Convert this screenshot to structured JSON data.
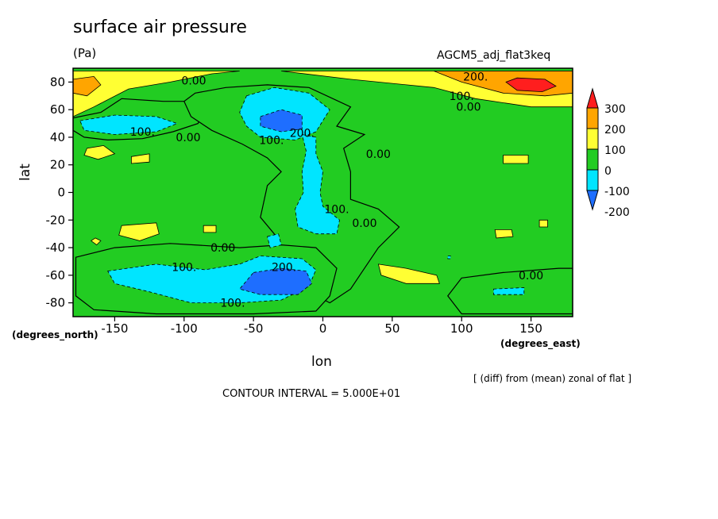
{
  "title": "surface air pressure",
  "units": "(Pa)",
  "run_name": "AGCM5_adj_flat3keq",
  "ylabel": "lat",
  "yunit": "(degrees_north)",
  "xlabel": "lon",
  "xunit": "(degrees_east)",
  "note": "[ (diff) from (mean) zonal of flat ]",
  "contour_interval": "CONTOUR INTERVAL = 5.000E+01",
  "chart_data": {
    "type": "heatmap",
    "title": "surface air pressure",
    "xlabel": "lon",
    "ylabel": "lat",
    "xlim": [
      -180,
      180
    ],
    "ylim": [
      -90,
      90
    ],
    "x_ticks": [
      -150,
      -100,
      -50,
      0,
      50,
      100,
      150
    ],
    "x_tick_labels": [
      "-150",
      "-100",
      "-50",
      "0",
      "50",
      "100",
      "150"
    ],
    "y_ticks": [
      80,
      60,
      40,
      20,
      0,
      -20,
      -40,
      -60,
      -80
    ],
    "y_tick_labels": [
      "80",
      "60",
      "40",
      "20",
      "0",
      "-20",
      "-40",
      "-60",
      "-80"
    ],
    "contour_interval": 50,
    "colorbar": {
      "levels": [
        -200,
        -100,
        0,
        100,
        200,
        300
      ],
      "labels": [
        "300",
        "200",
        "100",
        "0",
        "-100",
        "-200"
      ],
      "colors": [
        "#1E6EFF",
        "#00E5FF",
        "#22CC22",
        "#FFFF33",
        "#FFA500",
        "#FF1E1E"
      ]
    },
    "contour_labels": [
      {
        "text": "0.00",
        "lon": -93,
        "lat": 81
      },
      {
        "text": "200.",
        "lon": 110,
        "lat": 84
      },
      {
        "text": "100.",
        "lon": 100,
        "lat": 70
      },
      {
        "text": "0.00",
        "lon": 105,
        "lat": 62
      },
      {
        "text": "100.",
        "lon": -130,
        "lat": 44
      },
      {
        "text": "0.00",
        "lon": -97,
        "lat": 40
      },
      {
        "text": "100.",
        "lon": -37,
        "lat": 38
      },
      {
        "text": "200.",
        "lon": -15,
        "lat": 43
      },
      {
        "text": "0.00",
        "lon": 40,
        "lat": 28
      },
      {
        "text": "100.",
        "lon": 10,
        "lat": -12
      },
      {
        "text": "0.00",
        "lon": 30,
        "lat": -22
      },
      {
        "text": "0.00",
        "lon": -72,
        "lat": -40
      },
      {
        "text": "100.",
        "lon": -100,
        "lat": -54
      },
      {
        "text": "200.",
        "lon": -28,
        "lat": -54
      },
      {
        "text": "0.00",
        "lon": 150,
        "lat": -60
      },
      {
        "text": "100.",
        "lon": -65,
        "lat": -80
      }
    ],
    "regions": [
      {
        "level": 100,
        "pts": [
          [
            -180,
            88
          ],
          [
            -180,
            55
          ],
          [
            -165,
            62
          ],
          [
            -140,
            75
          ],
          [
            -110,
            80
          ],
          [
            -80,
            86
          ],
          [
            -60,
            88
          ]
        ]
      },
      {
        "level": 200,
        "pts": [
          [
            -180,
            82
          ],
          [
            -180,
            72
          ],
          [
            -170,
            70
          ],
          [
            -160,
            78
          ],
          [
            -165,
            84
          ]
        ]
      },
      {
        "level": 100,
        "pts": [
          [
            -30,
            88
          ],
          [
            20,
            82
          ],
          [
            80,
            76
          ],
          [
            110,
            68
          ],
          [
            150,
            62
          ],
          [
            180,
            62
          ],
          [
            180,
            88
          ]
        ]
      },
      {
        "level": 200,
        "pts": [
          [
            80,
            88
          ],
          [
            100,
            80
          ],
          [
            130,
            72
          ],
          [
            160,
            70
          ],
          [
            180,
            72
          ],
          [
            180,
            88
          ]
        ]
      },
      {
        "level": 300,
        "pts": [
          [
            132,
            80
          ],
          [
            140,
            74
          ],
          [
            158,
            73
          ],
          [
            168,
            77
          ],
          [
            160,
            82
          ],
          [
            140,
            83
          ]
        ]
      },
      {
        "level": 0,
        "pts": [
          [
            -160,
            58
          ],
          [
            -145,
            68
          ],
          [
            -115,
            66
          ],
          [
            -92,
            66
          ],
          [
            -86,
            60
          ],
          [
            -90,
            50
          ],
          [
            -108,
            44
          ],
          [
            -130,
            39
          ],
          [
            -155,
            38
          ],
          [
            -172,
            40
          ],
          [
            -180,
            45
          ],
          [
            -180,
            54
          ]
        ]
      },
      {
        "level": 0,
        "pts": [
          [
            -92,
            72
          ],
          [
            -70,
            76
          ],
          [
            -40,
            78
          ],
          [
            -10,
            76
          ],
          [
            20,
            62
          ],
          [
            10,
            48
          ],
          [
            30,
            42
          ],
          [
            15,
            32
          ],
          [
            20,
            15
          ],
          [
            20,
            -5
          ],
          [
            40,
            -12
          ],
          [
            55,
            -25
          ],
          [
            40,
            -40
          ],
          [
            30,
            -55
          ],
          [
            20,
            -70
          ],
          [
            5,
            -80
          ],
          [
            -10,
            -72
          ],
          [
            -25,
            -50
          ],
          [
            -35,
            -30
          ],
          [
            -45,
            -18
          ],
          [
            -40,
            5
          ],
          [
            -30,
            15
          ],
          [
            -40,
            25
          ],
          [
            -58,
            35
          ],
          [
            -80,
            45
          ],
          [
            -95,
            55
          ],
          [
            -100,
            66
          ]
        ]
      },
      {
        "level": 0,
        "pts": [
          [
            -178,
            -47
          ],
          [
            -150,
            -40
          ],
          [
            -110,
            -37
          ],
          [
            -60,
            -40
          ],
          [
            -30,
            -38
          ],
          [
            -5,
            -40
          ],
          [
            10,
            -55
          ],
          [
            5,
            -75
          ],
          [
            -5,
            -86
          ],
          [
            -50,
            -88
          ],
          [
            -120,
            -88
          ],
          [
            -165,
            -85
          ],
          [
            -178,
            -75
          ]
        ]
      },
      {
        "level": 0,
        "pts": [
          [
            100,
            -62
          ],
          [
            130,
            -58
          ],
          [
            170,
            -55
          ],
          [
            180,
            -55
          ],
          [
            180,
            -88
          ],
          [
            100,
            -88
          ],
          [
            90,
            -75
          ]
        ]
      },
      {
        "level": -100,
        "pts": [
          [
            -175,
            52
          ],
          [
            -150,
            56
          ],
          [
            -120,
            55
          ],
          [
            -105,
            50
          ],
          [
            -120,
            44
          ],
          [
            -150,
            42
          ],
          [
            -172,
            45
          ]
        ]
      },
      {
        "level": -100,
        "pts": [
          [
            -55,
            70
          ],
          [
            -35,
            76
          ],
          [
            -10,
            72
          ],
          [
            5,
            60
          ],
          [
            -5,
            44
          ],
          [
            -20,
            38
          ],
          [
            -45,
            40
          ],
          [
            -55,
            48
          ],
          [
            -60,
            58
          ]
        ]
      },
      {
        "level": -100,
        "pts": [
          [
            -15,
            42
          ],
          [
            -5,
            40
          ],
          [
            -5,
            28
          ],
          [
            0,
            15
          ],
          [
            -2,
            0
          ],
          [
            0,
            -10
          ],
          [
            12,
            -20
          ],
          [
            10,
            -30
          ],
          [
            -5,
            -30
          ],
          [
            -18,
            -25
          ],
          [
            -20,
            -12
          ],
          [
            -14,
            0
          ],
          [
            -15,
            15
          ],
          [
            -12,
            30
          ]
        ]
      },
      {
        "level": -100,
        "pts": [
          [
            -155,
            -57
          ],
          [
            -120,
            -52
          ],
          [
            -85,
            -56
          ],
          [
            -60,
            -52
          ],
          [
            -45,
            -46
          ],
          [
            -15,
            -48
          ],
          [
            -5,
            -56
          ],
          [
            -10,
            -68
          ],
          [
            -30,
            -78
          ],
          [
            -60,
            -80
          ],
          [
            -95,
            -80
          ],
          [
            -125,
            -72
          ],
          [
            -150,
            -66
          ]
        ]
      },
      {
        "level": -200,
        "pts": [
          [
            -50,
            -58
          ],
          [
            -30,
            -55
          ],
          [
            -12,
            -57
          ],
          [
            -8,
            -66
          ],
          [
            -18,
            -74
          ],
          [
            -45,
            -74
          ],
          [
            -60,
            -70
          ]
        ]
      },
      {
        "level": -200,
        "pts": [
          [
            -45,
            55
          ],
          [
            -30,
            60
          ],
          [
            -15,
            56
          ],
          [
            -15,
            46
          ],
          [
            -30,
            44
          ],
          [
            -45,
            48
          ]
        ]
      },
      {
        "level": 100,
        "pts": [
          [
            -170,
            32
          ],
          [
            -158,
            34
          ],
          [
            -150,
            28
          ],
          [
            -162,
            24
          ],
          [
            -172,
            27
          ]
        ]
      },
      {
        "level": 100,
        "pts": [
          [
            -138,
            26
          ],
          [
            -125,
            28
          ],
          [
            -125,
            22
          ],
          [
            -138,
            21
          ]
        ]
      },
      {
        "level": 100,
        "pts": [
          [
            -145,
            -24
          ],
          [
            -120,
            -22
          ],
          [
            -118,
            -30
          ],
          [
            -132,
            -35
          ],
          [
            -147,
            -31
          ]
        ]
      },
      {
        "level": 100,
        "pts": [
          [
            -86,
            -24
          ],
          [
            -77,
            -24
          ],
          [
            -77,
            -29
          ],
          [
            -86,
            -29
          ]
        ]
      },
      {
        "level": 100,
        "pts": [
          [
            -164,
            -33
          ],
          [
            -160,
            -35
          ],
          [
            -163,
            -38
          ],
          [
            -167,
            -35
          ]
        ]
      },
      {
        "level": 100,
        "pts": [
          [
            130,
            27
          ],
          [
            148,
            27
          ],
          [
            148,
            21
          ],
          [
            130,
            21
          ]
        ]
      },
      {
        "level": 100,
        "pts": [
          [
            40,
            -52
          ],
          [
            60,
            -55
          ],
          [
            82,
            -60
          ],
          [
            84,
            -66
          ],
          [
            60,
            -66
          ],
          [
            42,
            -60
          ]
        ]
      },
      {
        "level": 100,
        "pts": [
          [
            124,
            -27
          ],
          [
            136,
            -27
          ],
          [
            137,
            -32
          ],
          [
            125,
            -33
          ]
        ]
      },
      {
        "level": 100,
        "pts": [
          [
            156,
            -20
          ],
          [
            162,
            -20
          ],
          [
            162,
            -25
          ],
          [
            156,
            -25
          ]
        ]
      },
      {
        "level": -100,
        "pts": [
          [
            -40,
            -32
          ],
          [
            -32,
            -30
          ],
          [
            -30,
            -38
          ],
          [
            -38,
            -40
          ]
        ]
      },
      {
        "level": -100,
        "pts": [
          [
            123,
            -70
          ],
          [
            145,
            -69
          ],
          [
            145,
            -74
          ],
          [
            123,
            -74
          ]
        ]
      },
      {
        "level": -100,
        "pts": [
          [
            90,
            -46
          ],
          [
            92,
            -46
          ],
          [
            92,
            -48
          ],
          [
            90,
            -48
          ]
        ]
      }
    ]
  }
}
